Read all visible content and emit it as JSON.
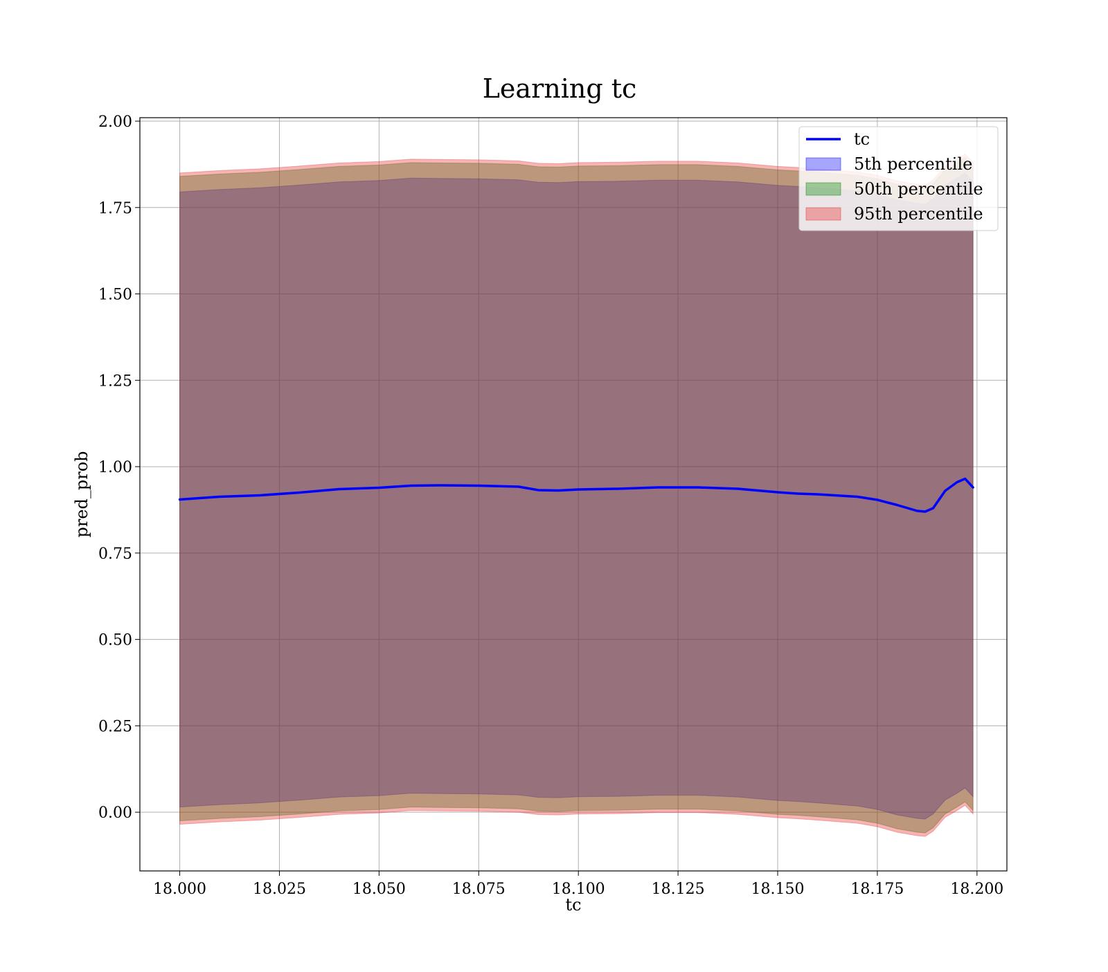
{
  "chart_data": {
    "type": "area",
    "title": "Learning tc",
    "xlabel": "tc",
    "ylabel": "pred_prob",
    "xlim": [
      17.99,
      18.2075
    ],
    "ylim": [
      -0.17,
      2.01
    ],
    "grid": true,
    "legend_position": "top-right",
    "x_ticks": [
      "18.000",
      "18.025",
      "18.050",
      "18.075",
      "18.100",
      "18.125",
      "18.150",
      "18.175",
      "18.200"
    ],
    "x_tick_values": [
      18.0,
      18.025,
      18.05,
      18.075,
      18.1,
      18.125,
      18.15,
      18.175,
      18.2
    ],
    "y_ticks": [
      "0.00",
      "0.25",
      "0.50",
      "0.75",
      "1.00",
      "1.25",
      "1.50",
      "1.75",
      "2.00"
    ],
    "y_tick_values": [
      0.0,
      0.25,
      0.5,
      0.75,
      1.0,
      1.25,
      1.5,
      1.75,
      2.0
    ],
    "x": [
      18.0,
      18.01,
      18.02,
      18.03,
      18.04,
      18.05,
      18.058,
      18.065,
      18.075,
      18.085,
      18.09,
      18.095,
      18.1,
      18.11,
      18.12,
      18.13,
      18.14,
      18.15,
      18.155,
      18.16,
      18.17,
      18.175,
      18.18,
      18.185,
      18.187,
      18.189,
      18.192,
      18.195,
      18.197,
      18.199
    ],
    "series": [
      {
        "name": "tc",
        "kind": "line",
        "color": "#0000ff",
        "values": [
          0.905,
          0.913,
          0.917,
          0.925,
          0.935,
          0.939,
          0.945,
          0.946,
          0.945,
          0.942,
          0.932,
          0.931,
          0.934,
          0.936,
          0.94,
          0.94,
          0.936,
          0.926,
          0.922,
          0.92,
          0.913,
          0.904,
          0.889,
          0.872,
          0.87,
          0.88,
          0.93,
          0.955,
          0.965,
          0.94
        ]
      },
      {
        "name": "5th percentile",
        "kind": "band",
        "color": "#0000ff",
        "lower": [
          0.015,
          0.022,
          0.027,
          0.035,
          0.044,
          0.048,
          0.055,
          0.054,
          0.053,
          0.05,
          0.043,
          0.042,
          0.045,
          0.046,
          0.049,
          0.049,
          0.044,
          0.034,
          0.031,
          0.027,
          0.018,
          0.008,
          -0.008,
          -0.018,
          -0.02,
          -0.005,
          0.035,
          0.055,
          0.07,
          0.045
        ],
        "upper": [
          1.795,
          1.802,
          1.807,
          1.815,
          1.824,
          1.828,
          1.835,
          1.834,
          1.833,
          1.83,
          1.823,
          1.822,
          1.825,
          1.826,
          1.829,
          1.829,
          1.824,
          1.814,
          1.811,
          1.807,
          1.798,
          1.788,
          1.772,
          1.762,
          1.76,
          1.775,
          1.815,
          1.835,
          1.85,
          1.825
        ]
      },
      {
        "name": "50th percentile",
        "kind": "band",
        "color": "#008000",
        "lower": [
          -0.025,
          -0.018,
          -0.013,
          -0.005,
          0.004,
          0.008,
          0.015,
          0.014,
          0.013,
          0.01,
          0.003,
          0.002,
          0.005,
          0.006,
          0.009,
          0.009,
          0.004,
          -0.006,
          -0.009,
          -0.013,
          -0.022,
          -0.032,
          -0.048,
          -0.058,
          -0.06,
          -0.045,
          -0.005,
          0.015,
          0.03,
          0.005
        ],
        "upper": [
          1.84,
          1.847,
          1.852,
          1.86,
          1.869,
          1.873,
          1.88,
          1.879,
          1.878,
          1.875,
          1.868,
          1.867,
          1.87,
          1.871,
          1.874,
          1.874,
          1.869,
          1.859,
          1.856,
          1.852,
          1.843,
          1.833,
          1.817,
          1.807,
          1.805,
          1.82,
          1.86,
          1.88,
          1.895,
          1.87
        ]
      },
      {
        "name": "95th percentile",
        "kind": "band",
        "color": "#e8292b",
        "lower": [
          -0.035,
          -0.028,
          -0.023,
          -0.015,
          -0.006,
          -0.002,
          0.005,
          0.004,
          0.003,
          0.0,
          -0.007,
          -0.008,
          -0.005,
          -0.004,
          -0.001,
          -0.001,
          -0.006,
          -0.016,
          -0.019,
          -0.023,
          -0.032,
          -0.042,
          -0.058,
          -0.068,
          -0.07,
          -0.055,
          -0.015,
          0.005,
          0.02,
          -0.005
        ],
        "upper": [
          1.85,
          1.857,
          1.862,
          1.87,
          1.879,
          1.883,
          1.89,
          1.889,
          1.888,
          1.885,
          1.878,
          1.877,
          1.88,
          1.881,
          1.884,
          1.884,
          1.879,
          1.869,
          1.866,
          1.862,
          1.853,
          1.843,
          1.827,
          1.817,
          1.815,
          1.83,
          1.87,
          1.89,
          1.905,
          1.88
        ]
      }
    ],
    "legend": [
      {
        "label": "tc",
        "kind": "line",
        "color": "#0000ff"
      },
      {
        "label": "5th percentile",
        "kind": "patch",
        "color": "#0000ff"
      },
      {
        "label": "50th percentile",
        "kind": "patch",
        "color": "#008000"
      },
      {
        "label": "95th percentile",
        "kind": "patch",
        "color": "#e8292b"
      }
    ]
  }
}
